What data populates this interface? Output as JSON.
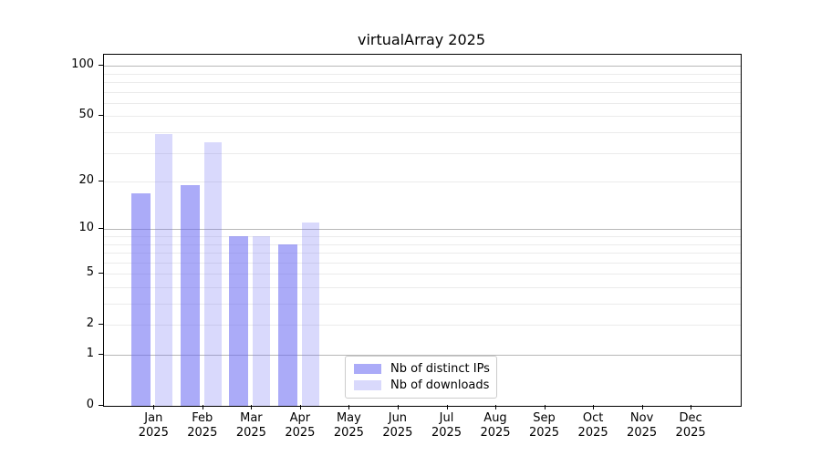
{
  "chart_data": {
    "type": "bar",
    "title": "virtualArray 2025",
    "categories": [
      "Jan",
      "Feb",
      "Mar",
      "Apr",
      "May",
      "Jun",
      "Jul",
      "Aug",
      "Sep",
      "Oct",
      "Nov",
      "Dec"
    ],
    "category_year": "2025",
    "series": [
      {
        "name": "Nb of distinct IPs",
        "color": "rgba(102,102,242,0.55)",
        "rendered_color": "#a9a9f5",
        "values": [
          17,
          19,
          9,
          8,
          0,
          0,
          0,
          0,
          0,
          0,
          0,
          0
        ]
      },
      {
        "name": "Nb of downloads",
        "color": "rgba(102,102,242,0.25)",
        "rendered_color": "#d9d9f8",
        "values": [
          39,
          35,
          9,
          11,
          0,
          0,
          0,
          0,
          0,
          0,
          0,
          0
        ]
      }
    ],
    "xlabel": "",
    "ylabel": "",
    "yscale": "log-like (log10 of value+1), linear tail to 0",
    "yticks": [
      0,
      1,
      2,
      5,
      10,
      20,
      50,
      100
    ],
    "ylim": [
      0,
      115
    ],
    "grid": "horizontal major (1,10,100) and log minor lines",
    "legend": {
      "position": "lower center",
      "entries": [
        "Nb of distinct IPs",
        "Nb of downloads"
      ]
    }
  },
  "colors": {
    "background": "#ffffff",
    "spine": "#000000",
    "major_grid": "#b8b8b8",
    "minor_grid": "#ebebeb",
    "text": "#000000",
    "legend_border": "#cccccc"
  }
}
